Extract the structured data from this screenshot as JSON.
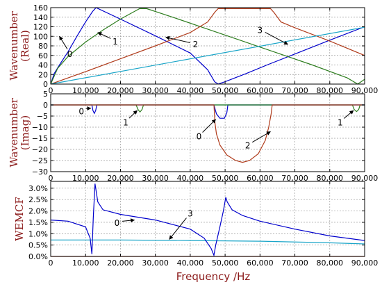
{
  "figure": {
    "xlabel": "Frequency /Hz",
    "colors": {
      "mode0": "#0000cc",
      "mode1": "#2e7d1f",
      "mode2": "#b03c1c",
      "mode3": "#1aa5c8",
      "label": "#8b1a1a"
    }
  },
  "chart_data": [
    {
      "type": "line",
      "ylabel_line1": "Wavenumber",
      "ylabel_line2": "(Real)",
      "xlim": [
        0,
        90000
      ],
      "ylim": [
        0,
        160
      ],
      "xticks": [
        0,
        10000,
        20000,
        30000,
        40000,
        50000,
        60000,
        70000,
        80000,
        90000
      ],
      "xtick_labels": [
        "0",
        "10,000",
        "20,000",
        "30,000",
        "40,000",
        "50,000",
        "60,000",
        "70,000",
        "80,000",
        "90,000"
      ],
      "yticks": [
        0,
        20,
        40,
        60,
        80,
        100,
        120,
        140,
        160
      ],
      "ytick_labels": [
        "0",
        "20",
        "40",
        "60",
        "80",
        "100",
        "120",
        "140",
        "160"
      ],
      "grid": true,
      "series": [
        {
          "color": "mode0",
          "x": [
            0,
            1000,
            2500,
            5000,
            7500,
            10000,
            12000,
            13000,
            20000,
            30000,
            40000,
            45000,
            47000,
            48000,
            50000,
            56000,
            62000,
            70000,
            80000,
            90000
          ],
          "y": [
            0,
            22,
            40,
            68,
            100,
            130,
            152,
            160,
            136,
            101,
            65,
            30,
            5,
            0,
            5,
            22,
            40,
            63,
            92,
            120
          ]
        },
        {
          "color": "mode1",
          "x": [
            0,
            2000,
            5000,
            10000,
            15000,
            20000,
            24000,
            25500,
            27500,
            35000,
            45000,
            55000,
            65000,
            75000,
            85000,
            88000,
            90000
          ],
          "y": [
            0,
            33,
            58,
            88,
            113,
            136,
            152,
            158,
            158,
            140,
            115,
            90,
            65,
            40,
            13,
            0,
            10
          ]
        },
        {
          "color": "mode2",
          "x": [
            0,
            10000,
            20000,
            30000,
            40000,
            45000,
            47000,
            48000,
            55000,
            63000,
            64000,
            66000,
            70000,
            80000,
            90000
          ],
          "y": [
            0,
            26,
            53,
            80,
            108,
            130,
            150,
            158,
            158,
            158,
            150,
            130,
            118,
            90,
            60
          ]
        },
        {
          "color": "mode3",
          "x": [
            0,
            90000
          ],
          "y": [
            0,
            119
          ]
        }
      ],
      "annotations": [
        {
          "text": "0",
          "x": 5500,
          "y": 57,
          "arrow_to": [
            2500,
            100
          ]
        },
        {
          "text": "1",
          "x": 18500,
          "y": 83,
          "arrow_to": [
            13500,
            108
          ]
        },
        {
          "text": "2",
          "x": 41500,
          "y": 77,
          "arrow_to": [
            33000,
            98
          ]
        },
        {
          "text": "3",
          "x": 60000,
          "y": 107,
          "arrow_to": [
            68000,
            83
          ]
        }
      ]
    },
    {
      "type": "line",
      "ylabel_line1": "Wavenumber",
      "ylabel_line2": "(Imag)",
      "xlim": [
        0,
        90000
      ],
      "ylim": [
        -30,
        5
      ],
      "xticks": [
        0,
        10000,
        20000,
        30000,
        40000,
        50000,
        60000,
        70000,
        80000,
        90000
      ],
      "xtick_labels": [
        "0",
        "10,000",
        "20,000",
        "30,000",
        "40,000",
        "50,000",
        "60,000",
        "70,000",
        "80,000",
        "90,000"
      ],
      "yticks": [
        5,
        0,
        -5,
        -10,
        -15,
        -20,
        -25,
        -30
      ],
      "ytick_labels": [
        "5",
        "0",
        "−5",
        "−10",
        "−15",
        "−20",
        "−25",
        "−30"
      ],
      "grid": true,
      "series": [
        {
          "color": "mode3",
          "x": [
            0,
            90000
          ],
          "y": [
            0,
            0
          ]
        },
        {
          "color": "mode0",
          "x": [
            0,
            11800,
            12100,
            12500,
            12900,
            13200,
            46800,
            47500,
            48500,
            49800,
            50500,
            50800,
            90000
          ],
          "y": [
            0,
            0,
            -2.5,
            -3.8,
            -2.5,
            0,
            0,
            -4,
            -6,
            -6,
            -3.5,
            0,
            0
          ]
        },
        {
          "color": "mode1",
          "x": [
            0,
            24500,
            25000,
            25600,
            26200,
            26600,
            86500,
            87000,
            87700,
            88300,
            88700,
            90000
          ],
          "y": [
            0,
            0,
            -2,
            -3.2,
            -2,
            0,
            0,
            -2,
            -3,
            -2,
            0,
            0
          ]
        },
        {
          "color": "mode2",
          "x": [
            0,
            46800,
            47100,
            47500,
            48500,
            50500,
            53000,
            55000,
            57000,
            59500,
            61500,
            62500,
            63200,
            63500,
            90000
          ],
          "y": [
            0,
            0,
            -8,
            -13,
            -18,
            -22.5,
            -25,
            -25.8,
            -25,
            -22,
            -16,
            -10,
            -4,
            0,
            0
          ]
        }
      ],
      "annotations": [
        {
          "text": "0",
          "x": 8800,
          "y": -4.2,
          "arrow_to": [
            11500,
            -1.5
          ]
        },
        {
          "text": "1",
          "x": 21500,
          "y": -9.2,
          "arrow_to": [
            24800,
            -2.5
          ]
        },
        {
          "text": "0",
          "x": 42500,
          "y": -15.5,
          "arrow_to": [
            47300,
            -6.5
          ]
        },
        {
          "text": "2",
          "x": 56500,
          "y": -19.5,
          "arrow_to": [
            63000,
            -12
          ]
        },
        {
          "text": "1",
          "x": 83000,
          "y": -9.2,
          "arrow_to": [
            86800,
            -2.5
          ]
        }
      ]
    },
    {
      "type": "line",
      "ylabel_line1": "WEMCF",
      "ylabel_line2": "",
      "xlim": [
        0,
        90000
      ],
      "ylim": [
        0,
        3.3
      ],
      "xticks": [
        0,
        10000,
        20000,
        30000,
        40000,
        50000,
        60000,
        70000,
        80000,
        90000
      ],
      "xtick_labels": [
        "0",
        "10,000",
        "20,000",
        "30,000",
        "40,000",
        "50,000",
        "60,000",
        "70,000",
        "80,000",
        "90,000"
      ],
      "yticks": [
        0,
        0.5,
        1,
        1.5,
        2,
        2.5,
        3
      ],
      "ytick_labels": [
        "0.0%",
        "0.5%",
        "1.0%",
        "1.5%",
        "2.0%",
        "2.5%",
        "3.0%"
      ],
      "grid": true,
      "series": [
        {
          "color": "mode2",
          "x": [
            0,
            90000
          ],
          "y": [
            0,
            0
          ]
        },
        {
          "color": "mode3",
          "x": [
            0,
            20000,
            40000,
            60000,
            80000,
            90000
          ],
          "y": [
            0.72,
            0.72,
            0.7,
            0.67,
            0.6,
            0.55
          ]
        },
        {
          "color": "mode0",
          "x": [
            0,
            5000,
            10000,
            11300,
            11800,
            12200,
            12700,
            13500,
            15000,
            20000,
            30000,
            40000,
            44000,
            46000,
            46800,
            47300,
            48500,
            49500,
            50200,
            50600,
            52000,
            55000,
            60000,
            70000,
            80000,
            90000
          ],
          "y": [
            1.6,
            1.55,
            1.3,
            0.8,
            0.1,
            1.7,
            3.2,
            2.4,
            2.05,
            1.85,
            1.6,
            1.2,
            0.8,
            0.35,
            0.05,
            0.5,
            1.3,
            2.0,
            2.6,
            2.4,
            2.05,
            1.8,
            1.55,
            1.2,
            0.9,
            0.7
          ]
        }
      ],
      "annotations": [
        {
          "text": "0",
          "x": 19000,
          "y": 1.35,
          "arrow_to": [
            24000,
            1.6
          ]
        },
        {
          "text": "3",
          "x": 40000,
          "y": 1.75,
          "arrow_to": [
            34000,
            0.75
          ]
        }
      ]
    }
  ]
}
